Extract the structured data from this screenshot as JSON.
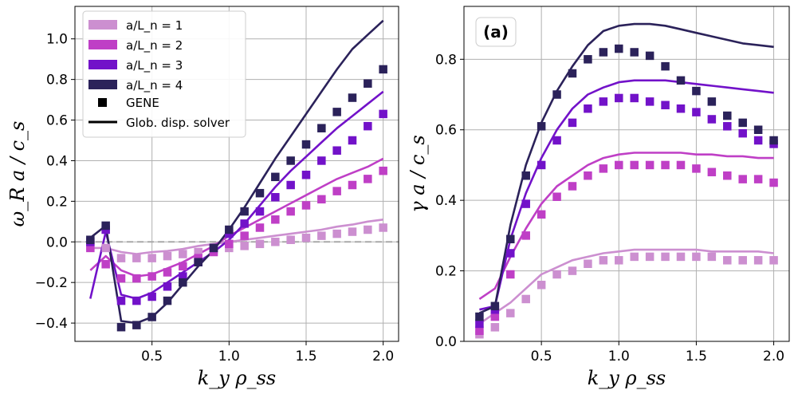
{
  "colors": {
    "n1": "#cc8fd0",
    "n2": "#bf3fc6",
    "n3": "#7212c9",
    "n4": "#2b225a",
    "grid": "#b0b0b0",
    "zero": "#a9a9a9"
  },
  "chart_data": [
    {
      "type": "scatter+line",
      "panel": "left",
      "xlabel": "k_y ρ_ss",
      "ylabel": "ω_R a / c_s",
      "xlim": [
        -0.0,
        2.1
      ],
      "ylim": [
        -0.49,
        1.16
      ],
      "xticks": [
        "0.5",
        "1.0",
        "1.5",
        "2.0"
      ],
      "yticks": [
        "−0.4",
        "−0.2",
        "0.0",
        "0.2",
        "0.4",
        "0.6",
        "0.8",
        "1.0"
      ],
      "grid": true,
      "zero_line": true,
      "legend": {
        "position": "top-left",
        "entries": [
          "a/L_n = 1",
          "a/L_n = 2",
          "a/L_n = 3",
          "a/L_n = 4",
          "GENE",
          "Glob. disp. solver"
        ]
      },
      "series": [
        {
          "name": "a/L_n = 1",
          "color_key": "n1",
          "gene_x": [
            0.1,
            0.2,
            0.3,
            0.4,
            0.5,
            0.6,
            0.7,
            0.8,
            0.9,
            1.0,
            1.1,
            1.2,
            1.3,
            1.4,
            1.5,
            1.6,
            1.7,
            1.8,
            1.9,
            2.0
          ],
          "gene_y": [
            -0.02,
            -0.03,
            -0.08,
            -0.08,
            -0.08,
            -0.07,
            -0.06,
            -0.05,
            -0.04,
            -0.03,
            -0.02,
            -0.01,
            0.0,
            0.01,
            0.02,
            0.03,
            0.04,
            0.05,
            0.06,
            0.07
          ],
          "solver_x": [
            0.1,
            0.2,
            0.3,
            0.4,
            0.5,
            0.6,
            0.7,
            0.8,
            0.9,
            1.0,
            1.1,
            1.2,
            1.3,
            1.4,
            1.5,
            1.6,
            1.7,
            1.8,
            1.9,
            2.0
          ],
          "solver_y": [
            -0.03,
            -0.03,
            -0.05,
            -0.06,
            -0.05,
            -0.045,
            -0.035,
            -0.02,
            -0.01,
            0.0,
            0.01,
            0.02,
            0.03,
            0.04,
            0.05,
            0.06,
            0.075,
            0.085,
            0.1,
            0.11
          ]
        },
        {
          "name": "a/L_n = 2",
          "color_key": "n2",
          "gene_x": [
            0.1,
            0.2,
            0.3,
            0.4,
            0.5,
            0.6,
            0.7,
            0.8,
            0.9,
            1.0,
            1.1,
            1.2,
            1.3,
            1.4,
            1.5,
            1.6,
            1.7,
            1.8,
            1.9,
            2.0
          ],
          "gene_y": [
            -0.03,
            -0.11,
            -0.18,
            -0.18,
            -0.17,
            -0.15,
            -0.12,
            -0.08,
            -0.05,
            -0.01,
            0.03,
            0.07,
            0.11,
            0.15,
            0.18,
            0.21,
            0.25,
            0.28,
            0.31,
            0.35
          ],
          "solver_x": [
            0.1,
            0.2,
            0.3,
            0.4,
            0.5,
            0.6,
            0.7,
            0.8,
            0.9,
            1.0,
            1.1,
            1.2,
            1.3,
            1.4,
            1.5,
            1.6,
            1.7,
            1.8,
            1.9,
            2.0
          ],
          "solver_y": [
            -0.14,
            -0.07,
            -0.14,
            -0.17,
            -0.16,
            -0.13,
            -0.1,
            -0.06,
            -0.02,
            0.03,
            0.07,
            0.11,
            0.15,
            0.19,
            0.23,
            0.27,
            0.31,
            0.34,
            0.37,
            0.41
          ]
        },
        {
          "name": "a/L_n = 3",
          "color_key": "n3",
          "gene_x": [
            0.1,
            0.2,
            0.3,
            0.4,
            0.5,
            0.6,
            0.7,
            0.8,
            0.9,
            1.0,
            1.1,
            1.2,
            1.3,
            1.4,
            1.5,
            1.6,
            1.7,
            1.8,
            1.9,
            2.0
          ],
          "gene_y": [
            0.0,
            0.06,
            -0.29,
            -0.29,
            -0.27,
            -0.22,
            -0.17,
            -0.1,
            -0.03,
            0.04,
            0.09,
            0.15,
            0.22,
            0.28,
            0.33,
            0.4,
            0.45,
            0.5,
            0.57,
            0.63
          ],
          "solver_x": [
            0.1,
            0.2,
            0.3,
            0.4,
            0.5,
            0.6,
            0.7,
            0.8,
            0.9,
            1.0,
            1.1,
            1.2,
            1.3,
            1.4,
            1.5,
            1.6,
            1.7,
            1.8,
            1.9,
            2.0
          ],
          "solver_y": [
            -0.28,
            0.05,
            -0.26,
            -0.28,
            -0.25,
            -0.2,
            -0.15,
            -0.1,
            -0.05,
            0.01,
            0.09,
            0.18,
            0.27,
            0.35,
            0.42,
            0.49,
            0.56,
            0.62,
            0.68,
            0.74
          ]
        },
        {
          "name": "a/L_n = 4",
          "color_key": "n4",
          "gene_x": [
            0.1,
            0.2,
            0.3,
            0.4,
            0.5,
            0.6,
            0.7,
            0.8,
            0.9,
            1.0,
            1.1,
            1.2,
            1.3,
            1.4,
            1.5,
            1.6,
            1.7,
            1.8,
            1.9,
            2.0
          ],
          "gene_y": [
            0.01,
            0.08,
            -0.42,
            -0.41,
            -0.37,
            -0.29,
            -0.2,
            -0.1,
            -0.03,
            0.06,
            0.15,
            0.24,
            0.32,
            0.4,
            0.48,
            0.56,
            0.64,
            0.71,
            0.78,
            0.85
          ],
          "solver_x": [
            0.1,
            0.2,
            0.3,
            0.4,
            0.5,
            0.6,
            0.7,
            0.8,
            0.9,
            1.0,
            1.1,
            1.2,
            1.3,
            1.4,
            1.5,
            1.6,
            1.7,
            1.8,
            1.9,
            2.0
          ],
          "solver_y": [
            0.02,
            0.08,
            -0.39,
            -0.4,
            -0.37,
            -0.3,
            -0.21,
            -0.12,
            -0.04,
            0.06,
            0.17,
            0.29,
            0.41,
            0.52,
            0.63,
            0.74,
            0.85,
            0.95,
            1.02,
            1.09
          ]
        }
      ]
    },
    {
      "type": "scatter+line",
      "panel": "right",
      "badge": "(a)",
      "xlabel": "k_y ρ_ss",
      "ylabel": "γ a / c_s",
      "xlim": [
        -0.0,
        2.1
      ],
      "ylim": [
        0.0,
        0.95
      ],
      "xticks": [
        "0.5",
        "1.0",
        "1.5",
        "2.0"
      ],
      "yticks": [
        "0.0",
        "0.2",
        "0.4",
        "0.6",
        "0.8"
      ],
      "grid": true,
      "series": [
        {
          "name": "a/L_n = 1",
          "color_key": "n1",
          "gene_x": [
            0.1,
            0.2,
            0.3,
            0.4,
            0.5,
            0.6,
            0.7,
            0.8,
            0.9,
            1.0,
            1.1,
            1.2,
            1.3,
            1.4,
            1.5,
            1.6,
            1.7,
            1.8,
            1.9,
            2.0
          ],
          "gene_y": [
            0.02,
            0.04,
            0.08,
            0.12,
            0.16,
            0.19,
            0.2,
            0.22,
            0.23,
            0.23,
            0.24,
            0.24,
            0.24,
            0.24,
            0.24,
            0.24,
            0.23,
            0.23,
            0.23,
            0.23
          ],
          "solver_x": [
            0.1,
            0.2,
            0.3,
            0.4,
            0.5,
            0.6,
            0.7,
            0.8,
            0.9,
            1.0,
            1.1,
            1.2,
            1.3,
            1.4,
            1.5,
            1.6,
            1.7,
            1.8,
            1.9,
            2.0
          ],
          "solver_y": [
            0.05,
            0.08,
            0.11,
            0.15,
            0.19,
            0.21,
            0.23,
            0.24,
            0.25,
            0.255,
            0.26,
            0.26,
            0.26,
            0.26,
            0.26,
            0.255,
            0.255,
            0.255,
            0.255,
            0.25
          ]
        },
        {
          "name": "a/L_n = 2",
          "color_key": "n2",
          "gene_x": [
            0.1,
            0.2,
            0.3,
            0.4,
            0.5,
            0.6,
            0.7,
            0.8,
            0.9,
            1.0,
            1.1,
            1.2,
            1.3,
            1.4,
            1.5,
            1.6,
            1.7,
            1.8,
            1.9,
            2.0
          ],
          "gene_y": [
            0.03,
            0.07,
            0.19,
            0.3,
            0.36,
            0.41,
            0.44,
            0.47,
            0.49,
            0.5,
            0.5,
            0.5,
            0.5,
            0.5,
            0.49,
            0.48,
            0.47,
            0.46,
            0.46,
            0.45
          ],
          "solver_x": [
            0.1,
            0.2,
            0.3,
            0.4,
            0.5,
            0.6,
            0.7,
            0.8,
            0.9,
            1.0,
            1.1,
            1.2,
            1.3,
            1.4,
            1.5,
            1.6,
            1.7,
            1.8,
            1.9,
            2.0
          ],
          "solver_y": [
            0.12,
            0.15,
            0.24,
            0.32,
            0.39,
            0.44,
            0.47,
            0.5,
            0.52,
            0.53,
            0.535,
            0.535,
            0.535,
            0.535,
            0.53,
            0.53,
            0.525,
            0.525,
            0.52,
            0.52
          ]
        },
        {
          "name": "a/L_n = 3",
          "color_key": "n3",
          "gene_x": [
            0.1,
            0.2,
            0.3,
            0.4,
            0.5,
            0.6,
            0.7,
            0.8,
            0.9,
            1.0,
            1.1,
            1.2,
            1.3,
            1.4,
            1.5,
            1.6,
            1.7,
            1.8,
            1.9,
            2.0
          ],
          "gene_y": [
            0.05,
            0.09,
            0.25,
            0.39,
            0.5,
            0.57,
            0.62,
            0.66,
            0.68,
            0.69,
            0.69,
            0.68,
            0.67,
            0.66,
            0.65,
            0.63,
            0.61,
            0.59,
            0.57,
            0.56
          ],
          "solver_x": [
            0.1,
            0.2,
            0.3,
            0.4,
            0.5,
            0.6,
            0.7,
            0.8,
            0.9,
            1.0,
            1.1,
            1.2,
            1.3,
            1.4,
            1.5,
            1.6,
            1.7,
            1.8,
            1.9,
            2.0
          ],
          "solver_y": [
            0.09,
            0.1,
            0.29,
            0.42,
            0.52,
            0.6,
            0.66,
            0.7,
            0.72,
            0.735,
            0.74,
            0.74,
            0.74,
            0.735,
            0.73,
            0.725,
            0.72,
            0.715,
            0.71,
            0.705
          ]
        },
        {
          "name": "a/L_n = 4",
          "color_key": "n4",
          "gene_x": [
            0.1,
            0.2,
            0.3,
            0.4,
            0.5,
            0.6,
            0.7,
            0.8,
            0.9,
            1.0,
            1.1,
            1.2,
            1.3,
            1.4,
            1.5,
            1.6,
            1.7,
            1.8,
            1.9,
            2.0
          ],
          "gene_y": [
            0.07,
            0.1,
            0.29,
            0.47,
            0.61,
            0.7,
            0.76,
            0.8,
            0.82,
            0.83,
            0.82,
            0.81,
            0.78,
            0.74,
            0.71,
            0.68,
            0.64,
            0.62,
            0.6,
            0.57
          ],
          "solver_x": [
            0.1,
            0.2,
            0.3,
            0.4,
            0.5,
            0.6,
            0.7,
            0.8,
            0.9,
            1.0,
            1.1,
            1.2,
            1.3,
            1.4,
            1.5,
            1.6,
            1.7,
            1.8,
            1.9,
            2.0
          ],
          "solver_y": [
            0.08,
            0.1,
            0.33,
            0.5,
            0.62,
            0.71,
            0.78,
            0.84,
            0.88,
            0.895,
            0.9,
            0.9,
            0.895,
            0.885,
            0.875,
            0.865,
            0.855,
            0.845,
            0.84,
            0.835
          ]
        }
      ]
    }
  ]
}
